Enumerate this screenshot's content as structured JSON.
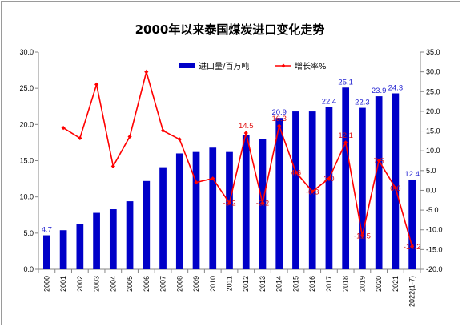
{
  "chart_data": {
    "type": "bar",
    "title": "2000年以来泰国煤炭进口变化走势",
    "categories": [
      "2000",
      "2001",
      "2002",
      "2003",
      "2004",
      "2005",
      "2006",
      "2007",
      "2008",
      "2009",
      "2010",
      "2011",
      "2012",
      "2013",
      "2014",
      "2015",
      "2016",
      "2017",
      "2018",
      "2019",
      "2020",
      "2021",
      "2022(1-7)"
    ],
    "series": [
      {
        "name": "进口量/百万吨",
        "type": "bar",
        "axis": "left",
        "color": "#0000c8",
        "values": [
          4.7,
          5.4,
          6.2,
          7.8,
          8.3,
          9.4,
          12.2,
          14.1,
          16.0,
          16.2,
          16.8,
          16.2,
          18.6,
          18.0,
          20.9,
          21.8,
          21.8,
          22.4,
          25.1,
          22.3,
          23.9,
          24.3,
          12.4
        ]
      },
      {
        "name": "增长率%",
        "type": "line",
        "axis": "right",
        "color": "#ff0000",
        "values": [
          null,
          15.8,
          13.2,
          26.8,
          6.1,
          13.6,
          30.0,
          15.1,
          12.9,
          2.0,
          3.0,
          -3.2,
          14.5,
          -3.2,
          16.3,
          4.6,
          -0.3,
          3.0,
          12.1,
          -11.5,
          7.5,
          0.6,
          -14.2
        ]
      }
    ],
    "data_labels": {
      "bars": [
        {
          "index": 0,
          "text": "4.7"
        },
        {
          "index": 14,
          "text": "20.9"
        },
        {
          "index": 17,
          "text": "22.4"
        },
        {
          "index": 18,
          "text": "25.1"
        },
        {
          "index": 19,
          "text": "22.3"
        },
        {
          "index": 20,
          "text": "23.9"
        },
        {
          "index": 21,
          "text": "24.3"
        },
        {
          "index": 22,
          "text": "12.4"
        }
      ],
      "line": [
        {
          "index": 12,
          "text": "14.5"
        },
        {
          "index": 11,
          "text": "-3.2"
        },
        {
          "index": 13,
          "text": "-3.2"
        },
        {
          "index": 14,
          "text": "16.3"
        },
        {
          "index": 15,
          "text": "4.6"
        },
        {
          "index": 16,
          "text": "-0.3"
        },
        {
          "index": 17,
          "text": "3.0"
        },
        {
          "index": 18,
          "text": "12.1"
        },
        {
          "index": 19,
          "text": "-11.5"
        },
        {
          "index": 20,
          "text": "7.5"
        },
        {
          "index": 21,
          "text": "0.6"
        },
        {
          "index": 22,
          "text": "-14.2"
        }
      ]
    },
    "y_left": {
      "min": 0,
      "max": 30,
      "step": 5,
      "tick_labels": [
        "0.0",
        "5.0",
        "10.0",
        "15.0",
        "20.0",
        "25.0",
        "30.0"
      ]
    },
    "y_right": {
      "min": -20,
      "max": 35,
      "step": 5,
      "tick_labels": [
        "-20.0",
        "-15.0",
        "-10.0",
        "-5.0",
        "0.0",
        "5.0",
        "10.0",
        "15.0",
        "20.0",
        "25.0",
        "30.0",
        "35.0"
      ]
    },
    "grid": false,
    "legend": "top-right"
  }
}
